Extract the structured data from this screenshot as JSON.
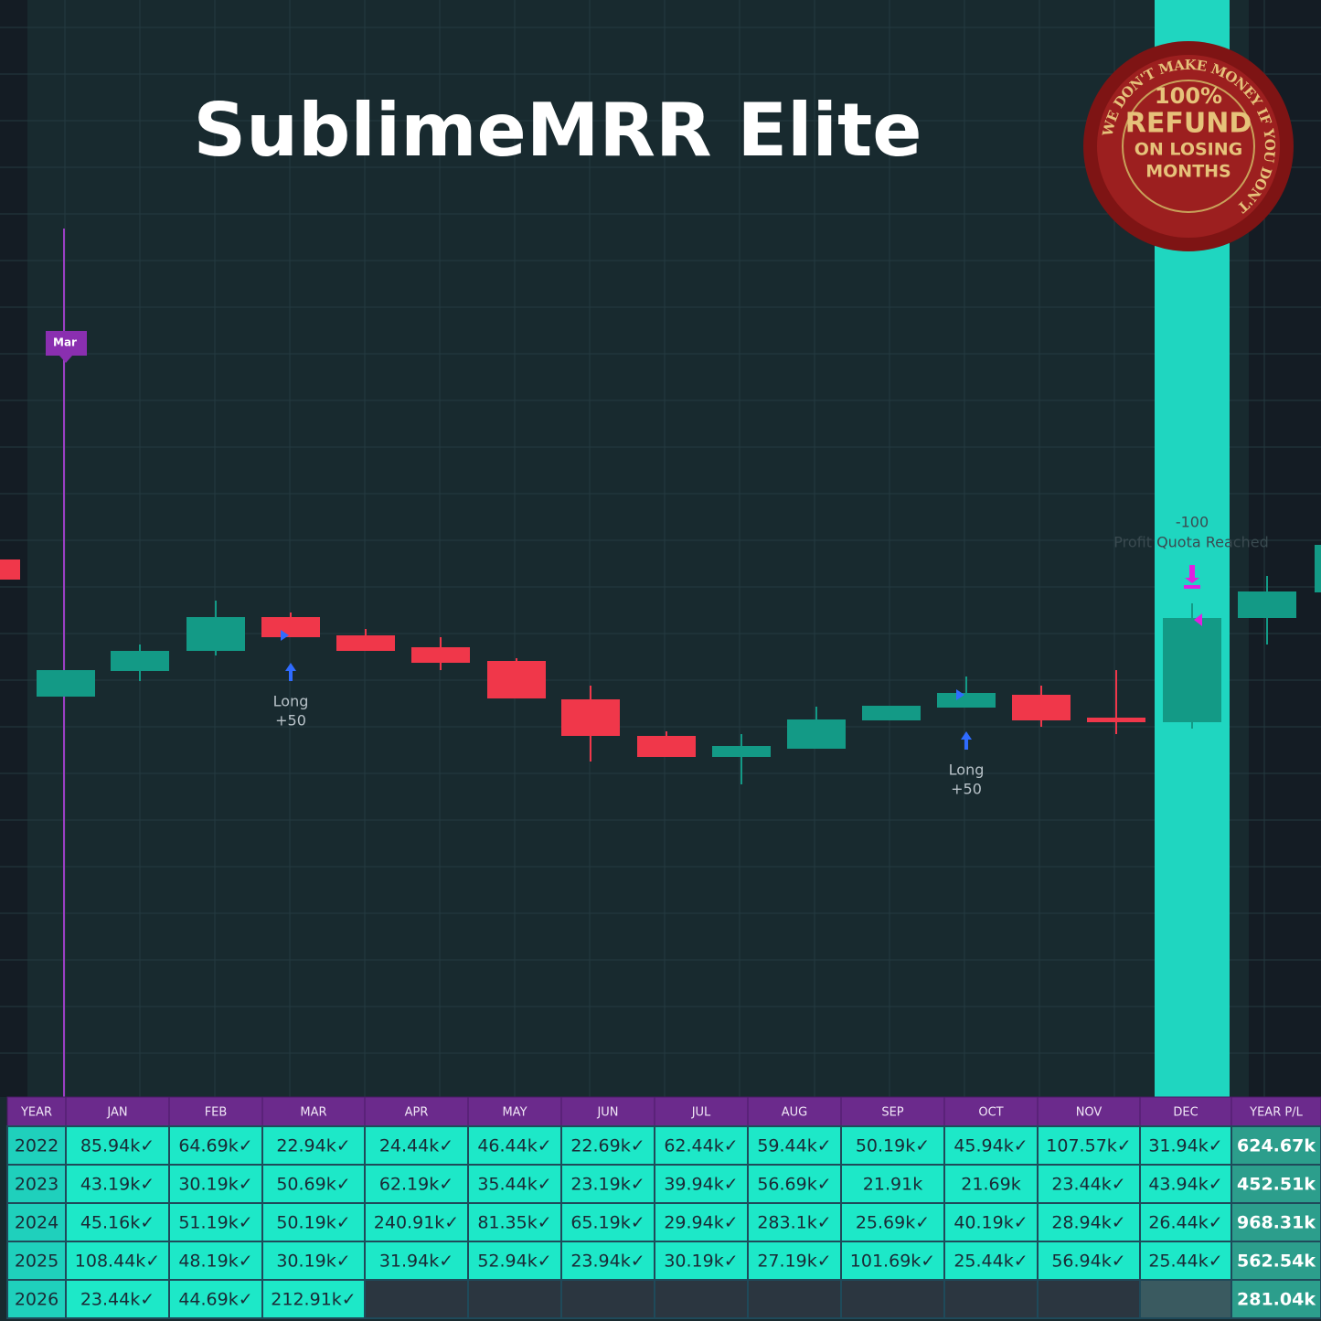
{
  "title": "SublimeMRR Elite",
  "seal": {
    "ring": "WE DON'T MAKE MONEY IF YOU DON'T",
    "line1": "100%",
    "line2": "REFUND",
    "line3": "ON LOSING",
    "line4": "MONTHS"
  },
  "chart": {
    "month_tag": "Mar",
    "signals": [
      {
        "label": "Long",
        "amount": "+50"
      },
      {
        "label": "Long",
        "amount": "+50"
      }
    ],
    "exit": {
      "amount": "-100",
      "label": "Profit Quota Reached"
    }
  },
  "table": {
    "header": [
      "YEAR",
      "JAN",
      "FEB",
      "MAR",
      "APR",
      "MAY",
      "JUN",
      "JUL",
      "AUG",
      "SEP",
      "OCT",
      "NOV",
      "DEC",
      "YEAR P/L"
    ],
    "rows": [
      [
        "2022",
        "85.94k✓",
        "64.69k✓",
        "22.94k✓",
        "24.44k✓",
        "46.44k✓",
        "22.69k✓",
        "62.44k✓",
        "59.44k✓",
        "50.19k✓",
        "45.94k✓",
        "107.57k✓",
        "31.94k✓",
        "624.67k"
      ],
      [
        "2023",
        "43.19k✓",
        "30.19k✓",
        "50.69k✓",
        "62.19k✓",
        "35.44k✓",
        "23.19k✓",
        "39.94k✓",
        "56.69k✓",
        "21.91k",
        "21.69k",
        "23.44k✓",
        "43.94k✓",
        "452.51k"
      ],
      [
        "2024",
        "45.16k✓",
        "51.19k✓",
        "50.19k✓",
        "240.91k✓",
        "81.35k✓",
        "65.19k✓",
        "29.94k✓",
        "283.1k✓",
        "25.69k✓",
        "40.19k✓",
        "28.94k✓",
        "26.44k✓",
        "968.31k"
      ],
      [
        "2025",
        "108.44k✓",
        "48.19k✓",
        "30.19k✓",
        "31.94k✓",
        "52.94k✓",
        "23.94k✓",
        "30.19k✓",
        "27.19k✓",
        "101.69k✓",
        "25.44k✓",
        "56.94k✓",
        "25.44k✓",
        "562.54k"
      ],
      [
        "2026",
        "23.44k✓",
        "44.69k✓",
        "212.91k✓",
        null,
        null,
        null,
        null,
        null,
        null,
        null,
        null,
        null,
        "281.04k"
      ]
    ]
  }
}
